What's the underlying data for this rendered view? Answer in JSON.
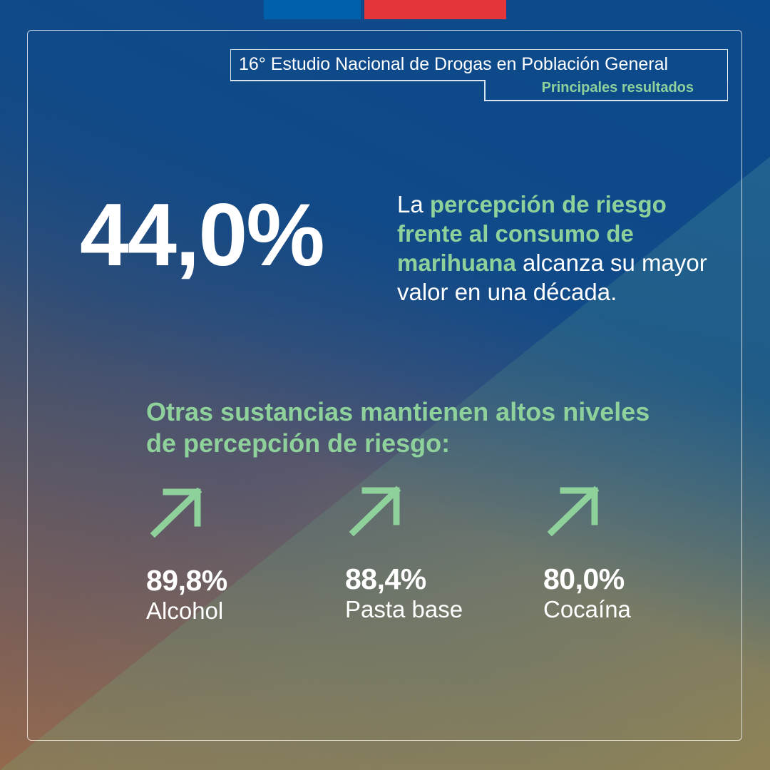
{
  "header": {
    "title": "16° Estudio Nacional de Drogas en Población General",
    "subtitle": "Principales resultados"
  },
  "main": {
    "big_value": "44,0%",
    "description": {
      "prefix": "La ",
      "highlight": "percepción de riesgo frente al consumo de marihuana",
      "suffix": " alcanza su mayor valor en una década."
    },
    "subheading": "Otras sustancias mantienen altos niveles de percepción de riesgo:"
  },
  "stats": [
    {
      "value": "89,8%",
      "label": "Alcohol",
      "icon": "arrow-up-right-icon"
    },
    {
      "value": "88,4%",
      "label": "Pasta base",
      "icon": "arrow-up-right-icon"
    },
    {
      "value": "80,0%",
      "label": "Cocaína",
      "icon": "arrow-up-right-icon"
    }
  ],
  "colors": {
    "accent_green": "#8fd19b",
    "flag_blue": "#0060aa",
    "flag_red": "#e4353a"
  }
}
